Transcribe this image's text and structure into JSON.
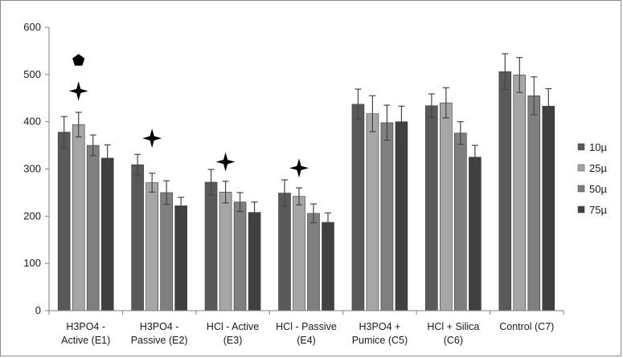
{
  "chart_data": {
    "type": "bar",
    "title": "",
    "xlabel": "",
    "ylabel": "",
    "ylim": [
      0,
      600
    ],
    "yticks": [
      0,
      100,
      200,
      300,
      400,
      500,
      600
    ],
    "grid": false,
    "legend_position": "right",
    "categories": [
      [
        "H3PO4 -",
        "Active (E1)"
      ],
      [
        "H3PO4 -",
        "Passive (E2)"
      ],
      [
        "HCl - Active",
        "(E3)"
      ],
      [
        "HCl - Passive",
        "(E4)"
      ],
      [
        "H3PO4 +",
        "Pumice (C5)"
      ],
      [
        "HCl + Silica",
        "(C6)"
      ],
      [
        "Control (C7)"
      ]
    ],
    "series": [
      {
        "name": "10µ",
        "color": "#595959",
        "values": [
          378,
          309,
          272,
          249,
          437,
          434,
          506
        ],
        "errors": [
          33,
          22,
          27,
          28,
          32,
          25,
          38
        ]
      },
      {
        "name": "25µ",
        "color": "#a6a6a6",
        "values": [
          394,
          271,
          251,
          242,
          417,
          440,
          499
        ],
        "errors": [
          26,
          20,
          23,
          18,
          38,
          32,
          37
        ]
      },
      {
        "name": "50µ",
        "color": "#7f7f7f",
        "values": [
          350,
          250,
          230,
          206,
          398,
          376,
          455
        ],
        "errors": [
          22,
          25,
          20,
          20,
          37,
          24,
          40
        ]
      },
      {
        "name": "75µ",
        "color": "#404040",
        "values": [
          323,
          222,
          208,
          187,
          400,
          325,
          433
        ],
        "errors": [
          28,
          18,
          22,
          20,
          33,
          25,
          37
        ]
      }
    ],
    "annotations": [
      {
        "symbol": "pentagon",
        "category": 0,
        "series": 1,
        "value": 530,
        "color": "#000000"
      },
      {
        "symbol": "four-point-star",
        "category": 0,
        "series": 1,
        "value": 465,
        "color": "#000000"
      },
      {
        "symbol": "four-point-star",
        "category": 1,
        "series": 1,
        "value": 365,
        "color": "#000000"
      },
      {
        "symbol": "four-point-star",
        "category": 2,
        "series": 1,
        "value": 315,
        "color": "#000000"
      },
      {
        "symbol": "four-point-star",
        "category": 3,
        "series": 1,
        "value": 302,
        "color": "#000000"
      }
    ]
  }
}
